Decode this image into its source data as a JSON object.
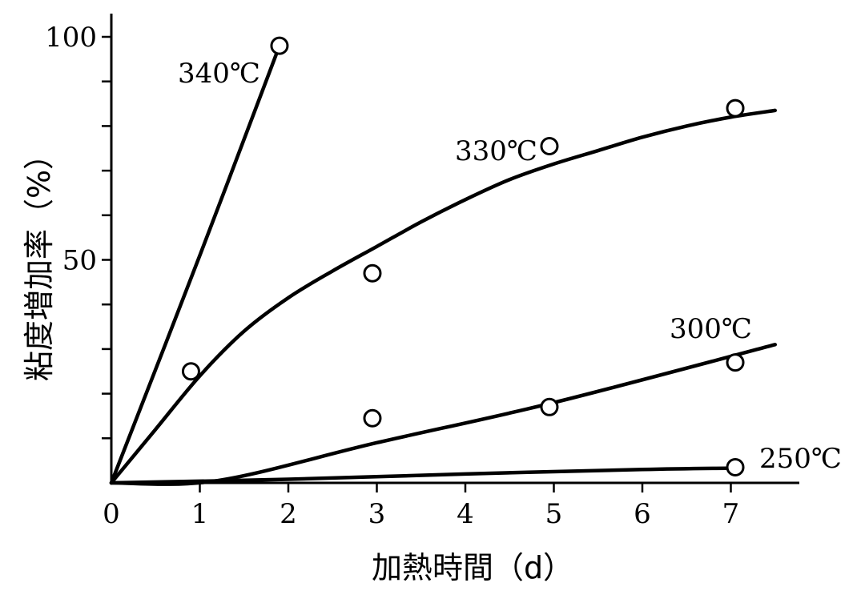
{
  "chart_data": {
    "type": "line",
    "xlabel": "加熱時間（d）",
    "ylabel": "粘度増加率（%）",
    "xlim": [
      0,
      7.8
    ],
    "ylim": [
      0,
      100
    ],
    "x_ticks": [
      0,
      1,
      2,
      3,
      4,
      5,
      6,
      7
    ],
    "x_tick_labels": [
      "0",
      "1",
      "2",
      "3",
      "4",
      "5",
      "6",
      "7"
    ],
    "y_ticks": [
      0,
      10,
      20,
      30,
      40,
      50,
      60,
      70,
      80,
      90,
      100
    ],
    "y_tick_labels": [
      {
        "value": 50,
        "label": "50"
      },
      {
        "value": 100,
        "label": "100"
      }
    ],
    "grid": false,
    "legend": "none",
    "series": [
      {
        "name": "340℃",
        "points": [
          [
            1.9,
            98
          ]
        ],
        "curve": [
          [
            0,
            0
          ],
          [
            1.0,
            51
          ],
          [
            1.9,
            98
          ]
        ]
      },
      {
        "name": "330℃",
        "points": [
          [
            0.9,
            25
          ],
          [
            2.95,
            47
          ],
          [
            4.95,
            75.5
          ],
          [
            7.05,
            84
          ]
        ],
        "curve": [
          [
            0,
            0
          ],
          [
            0.5,
            12
          ],
          [
            1.0,
            24
          ],
          [
            1.5,
            34
          ],
          [
            2.0,
            41.5
          ],
          [
            2.5,
            47.5
          ],
          [
            3.0,
            53
          ],
          [
            3.5,
            58.5
          ],
          [
            4.0,
            63.5
          ],
          [
            4.5,
            68
          ],
          [
            5.0,
            71.5
          ],
          [
            5.5,
            74.5
          ],
          [
            6.0,
            77.5
          ],
          [
            6.5,
            80
          ],
          [
            7.0,
            82
          ],
          [
            7.5,
            83.5
          ]
        ]
      },
      {
        "name": "300℃",
        "points": [
          [
            2.95,
            14.5
          ],
          [
            4.95,
            17
          ],
          [
            7.05,
            27
          ]
        ],
        "curve": [
          [
            0,
            0
          ],
          [
            1.2,
            0.5
          ],
          [
            3,
            9
          ],
          [
            5,
            18
          ],
          [
            7.5,
            31
          ]
        ]
      },
      {
        "name": "250℃",
        "points": [
          [
            7.05,
            3.5
          ]
        ],
        "curve": [
          [
            0,
            0
          ],
          [
            2,
            0.8
          ],
          [
            4,
            2
          ],
          [
            6,
            3
          ],
          [
            7,
            3.3
          ]
        ]
      }
    ]
  }
}
